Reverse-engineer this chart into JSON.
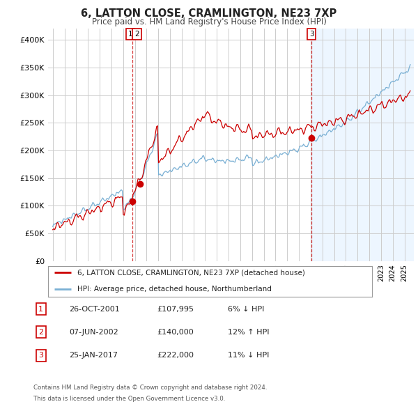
{
  "title": "6, LATTON CLOSE, CRAMLINGTON, NE23 7XP",
  "subtitle": "Price paid vs. HM Land Registry's House Price Index (HPI)",
  "ylim": [
    0,
    420000
  ],
  "yticks": [
    0,
    50000,
    100000,
    150000,
    200000,
    250000,
    300000,
    350000,
    400000
  ],
  "ytick_labels": [
    "£0",
    "£50K",
    "£100K",
    "£150K",
    "£200K",
    "£250K",
    "£300K",
    "£350K",
    "£400K"
  ],
  "legend_line1": "6, LATTON CLOSE, CRAMLINGTON, NE23 7XP (detached house)",
  "legend_line2": "HPI: Average price, detached house, Northumberland",
  "line_color_red": "#cc0000",
  "line_color_blue": "#7ab0d4",
  "transaction1_date": "26-OCT-2001",
  "transaction1_price": "£107,995",
  "transaction1_hpi": "6% ↓ HPI",
  "transaction2_date": "07-JUN-2002",
  "transaction2_price": "£140,000",
  "transaction2_hpi": "12% ↑ HPI",
  "transaction3_date": "25-JAN-2017",
  "transaction3_price": "£222,000",
  "transaction3_hpi": "11% ↓ HPI",
  "footnote1": "Contains HM Land Registry data © Crown copyright and database right 2024.",
  "footnote2": "This data is licensed under the Open Government Licence v3.0.",
  "background_color": "#ffffff",
  "grid_color": "#cccccc",
  "shade_color": "#ddeeff",
  "marker1_x": 2001.82,
  "marker1_y": 107995,
  "marker2_x": 2002.44,
  "marker2_y": 140000,
  "marker3_x": 2017.07,
  "marker3_y": 222000,
  "xmin": 1995.0,
  "xmax": 2025.5
}
